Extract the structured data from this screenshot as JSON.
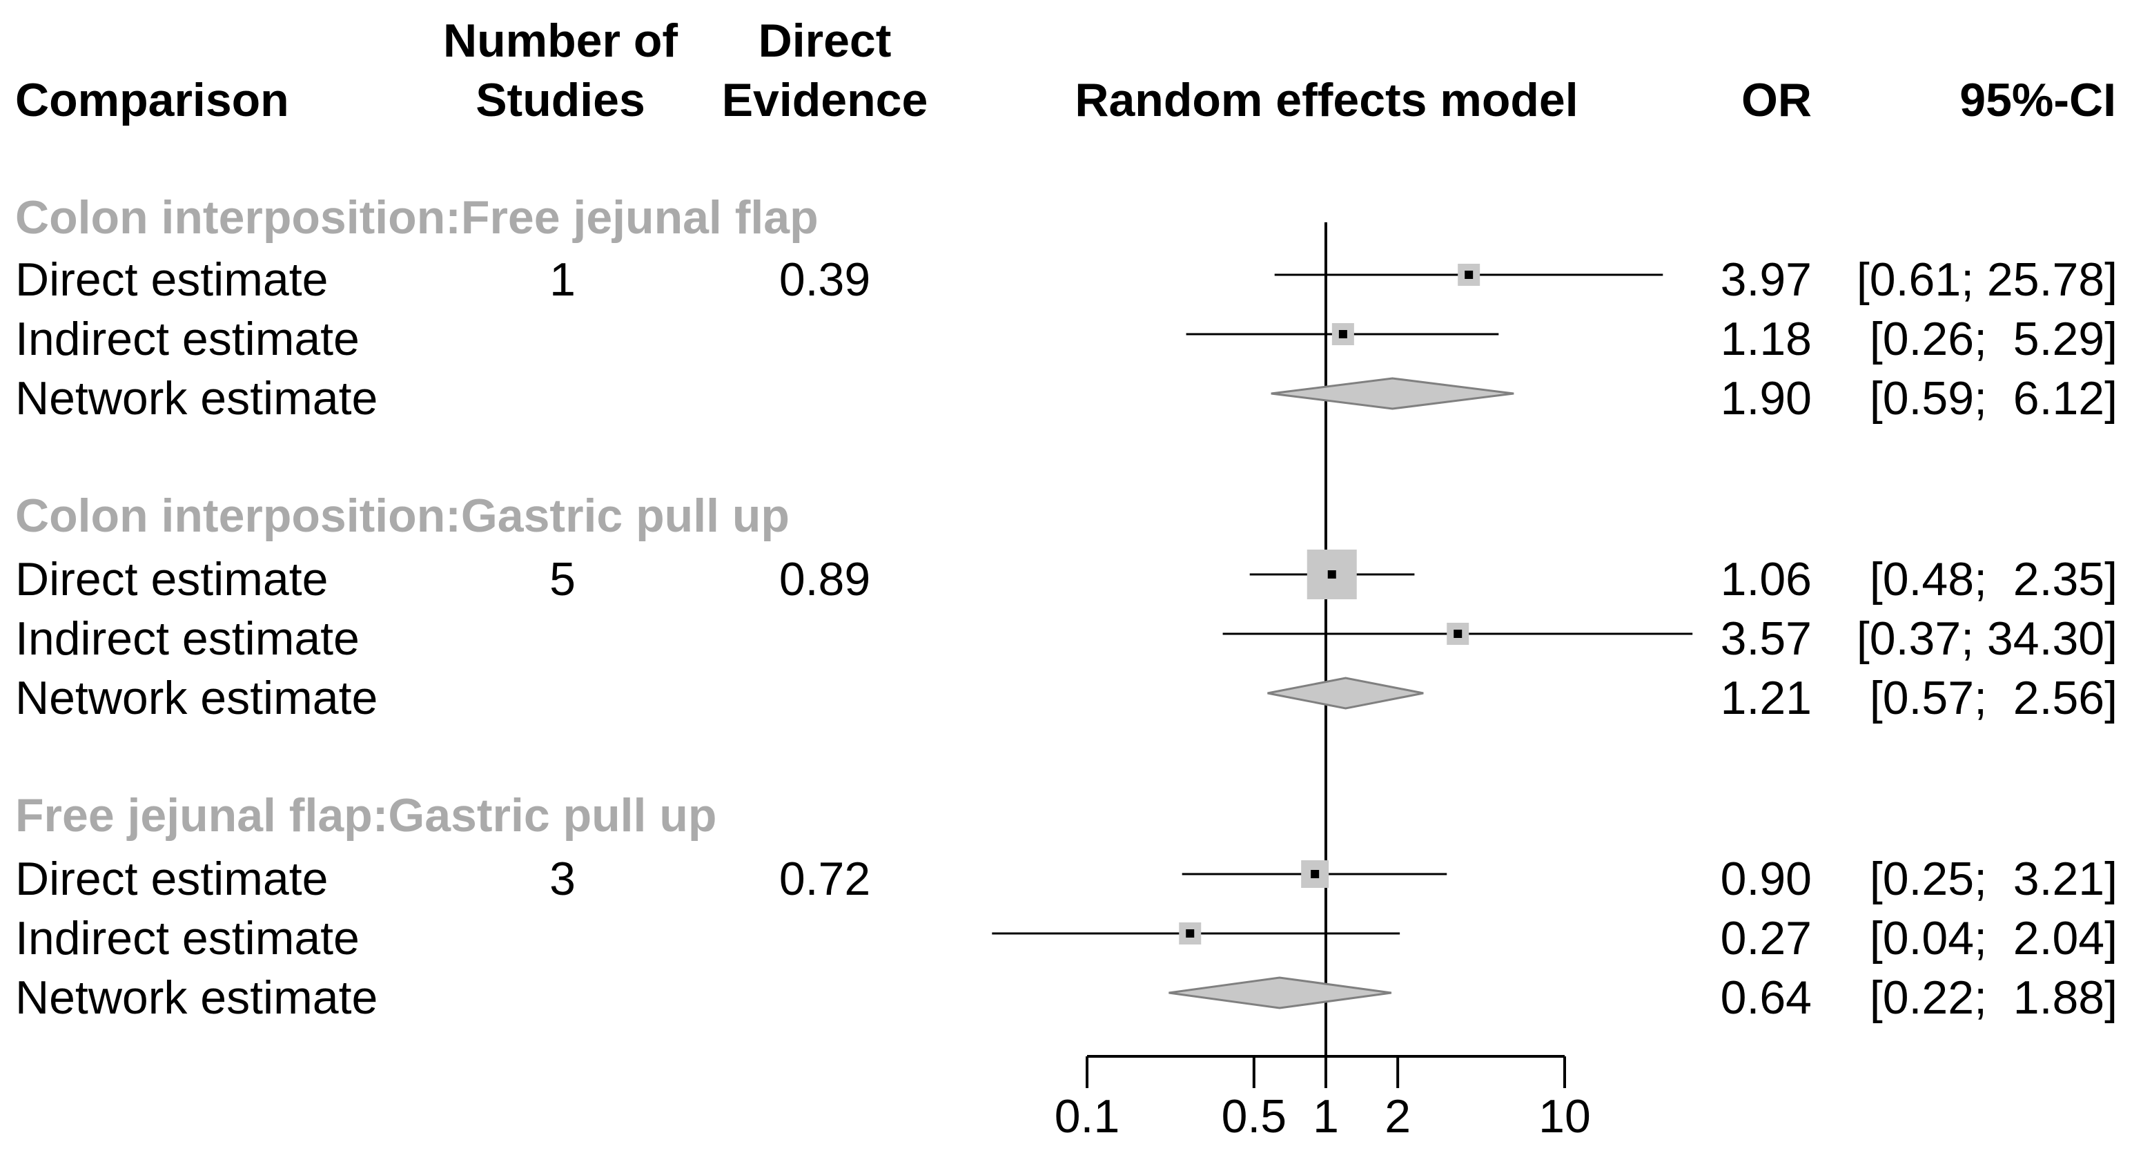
{
  "headers": {
    "comparison": "Comparison",
    "num_studies_line1": "Number of",
    "num_studies_line2": "Studies",
    "direct_evidence_line1": "Direct",
    "direct_evidence_line2": "Evidence",
    "model": "Random effects model",
    "or": "OR",
    "ci": "95%-CI"
  },
  "chart_data": {
    "type": "forest",
    "title": "Random effects model",
    "xscale": "log",
    "xlim": [
      0.1,
      10
    ],
    "reference_line": 1,
    "ticks": [
      {
        "value": 0.1,
        "label": "0.1"
      },
      {
        "value": 0.5,
        "label": "0.5"
      },
      {
        "value": 1,
        "label": "1"
      },
      {
        "value": 2,
        "label": "2"
      },
      {
        "value": 10,
        "label": "10"
      }
    ],
    "groups": [
      {
        "label": "Colon interposition:Free jejunal flap",
        "rows": [
          {
            "label": "Direct estimate",
            "kind": "direct",
            "studies": "1",
            "direct_evidence": "0.39",
            "or": 3.97,
            "lo": 0.61,
            "hi": 25.78,
            "or_text": "3.97",
            "ci_text": "[0.61; 25.78]"
          },
          {
            "label": "Indirect estimate",
            "kind": "indirect",
            "studies": "",
            "direct_evidence": "",
            "or": 1.18,
            "lo": 0.26,
            "hi": 5.29,
            "or_text": "1.18",
            "ci_text": "[0.26;  5.29]"
          },
          {
            "label": "Network estimate",
            "kind": "network",
            "studies": "",
            "direct_evidence": "",
            "or": 1.9,
            "lo": 0.59,
            "hi": 6.12,
            "or_text": "1.90",
            "ci_text": "[0.59;  6.12]"
          }
        ]
      },
      {
        "label": "Colon interposition:Gastric pull up",
        "rows": [
          {
            "label": "Direct estimate",
            "kind": "direct",
            "studies": "5",
            "direct_evidence": "0.89",
            "or": 1.06,
            "lo": 0.48,
            "hi": 2.35,
            "or_text": "1.06",
            "ci_text": "[0.48;  2.35]"
          },
          {
            "label": "Indirect estimate",
            "kind": "indirect",
            "studies": "",
            "direct_evidence": "",
            "or": 3.57,
            "lo": 0.37,
            "hi": 34.3,
            "or_text": "3.57",
            "ci_text": "[0.37; 34.30]"
          },
          {
            "label": "Network estimate",
            "kind": "network",
            "studies": "",
            "direct_evidence": "",
            "or": 1.21,
            "lo": 0.57,
            "hi": 2.56,
            "or_text": "1.21",
            "ci_text": "[0.57;  2.56]"
          }
        ]
      },
      {
        "label": "Free jejunal flap:Gastric pull up",
        "rows": [
          {
            "label": "Direct estimate",
            "kind": "direct",
            "studies": "3",
            "direct_evidence": "0.72",
            "or": 0.9,
            "lo": 0.25,
            "hi": 3.21,
            "or_text": "0.90",
            "ci_text": "[0.25;  3.21]"
          },
          {
            "label": "Indirect estimate",
            "kind": "indirect",
            "studies": "",
            "direct_evidence": "",
            "or": 0.27,
            "lo": 0.04,
            "hi": 2.04,
            "or_text": "0.27",
            "ci_text": "[0.04;  2.04]"
          },
          {
            "label": "Network estimate",
            "kind": "network",
            "studies": "",
            "direct_evidence": "",
            "or": 0.64,
            "lo": 0.22,
            "hi": 1.88,
            "or_text": "0.64",
            "ci_text": "[0.22;  1.88]"
          }
        ]
      }
    ]
  },
  "colors": {
    "text": "#000000",
    "group_label": "#aaaaaa",
    "diamond_fill": "#c8c8c8",
    "diamond_stroke": "#808080",
    "square_fill": "#c8c8c8",
    "line": "#000000"
  }
}
